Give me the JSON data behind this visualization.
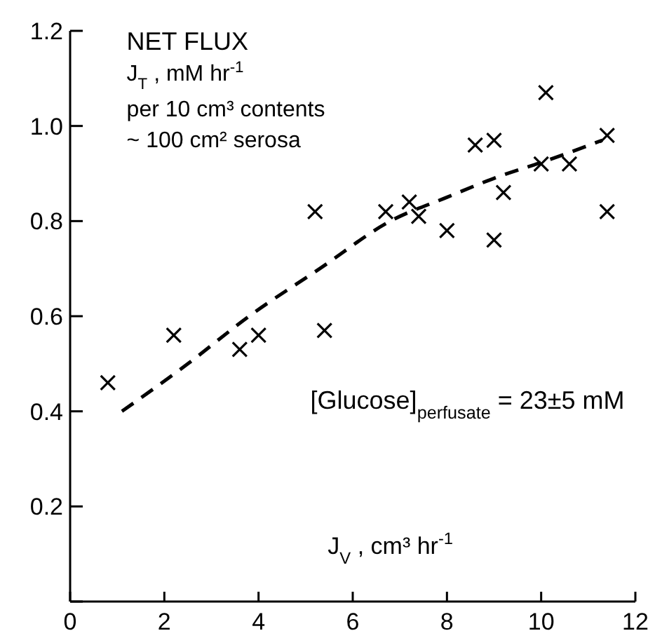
{
  "chart_data": {
    "type": "scatter",
    "title": "NET FLUX",
    "xlabel": "J$_{V}$ , cm³ hr$^{-1}$",
    "annotations": [
      "J$_{T}$ , mM hr$^{-1}$",
      "per 10 cm³ contents",
      "~ 100 cm² serosa",
      "[Glucose]$_{perfusate}$ = 23±5 mM"
    ],
    "xlim": [
      0,
      12
    ],
    "xticks": [
      0,
      2,
      4,
      6,
      8,
      10,
      12
    ],
    "ylim": [
      0,
      1.2
    ],
    "yticks": [
      {
        "value": 0,
        "label": null
      },
      0.2,
      0.4,
      0.6,
      0.8,
      {
        "value": 1.0,
        "label": "1.0"
      },
      1.2
    ],
    "grid": false,
    "series": [
      {
        "marker": "cross",
        "color": "#000000",
        "x": [
          0.8,
          2.2,
          3.6,
          4.0,
          5.4,
          5.2,
          6.7,
          7.2,
          7.4,
          8.0,
          8.6,
          9.0,
          9.0,
          9.2,
          10.0,
          10.1,
          10.6,
          11.4,
          11.4
        ],
        "values": [
          0.46,
          0.56,
          0.53,
          0.56,
          0.57,
          0.82,
          0.82,
          0.84,
          0.81,
          0.78,
          0.96,
          0.97,
          0.76,
          0.86,
          0.92,
          1.07,
          0.92,
          0.98,
          0.82
        ]
      },
      {
        "type": "line",
        "marker": "none",
        "line_style": "dashed",
        "color": "#000000",
        "x": [
          1.1,
          2.5,
          3.8,
          5.3,
          6.8,
          8.0,
          9.0,
          10.2,
          11.3
        ],
        "values": [
          0.4,
          0.5,
          0.6,
          0.7,
          0.8,
          0.85,
          0.89,
          0.93,
          0.97
        ]
      }
    ]
  }
}
